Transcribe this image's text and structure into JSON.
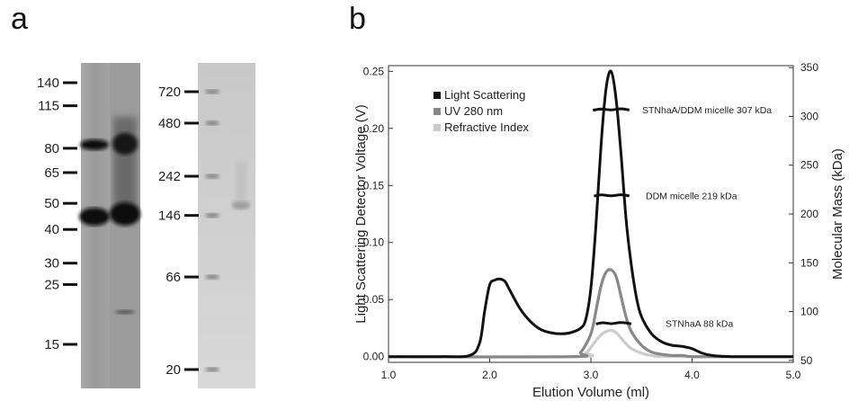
{
  "panels": {
    "a": "a",
    "b": "b"
  },
  "gel_left": {
    "markers": [
      "140",
      "115",
      "80",
      "65",
      "50",
      "40",
      "30",
      "25",
      "15"
    ],
    "marker_kda": [
      140,
      115,
      80,
      65,
      50,
      40,
      30,
      25,
      15
    ]
  },
  "gel_right": {
    "markers": [
      "720",
      "480",
      "242",
      "146",
      "66",
      "20"
    ],
    "marker_kda": [
      720,
      480,
      242,
      146,
      66,
      20
    ]
  },
  "chart_data": {
    "type": "line",
    "xlabel": "Elution Volume (ml)",
    "ylabel": "Light Scattering Detector Voltage (V)",
    "y2label": "Molecular Mass (kDa)",
    "xlim": [
      1.0,
      5.0
    ],
    "ylim": [
      -0.005,
      0.255
    ],
    "y2lim": [
      48,
      352
    ],
    "x_ticks": [
      "1.0",
      "2.0",
      "3.0",
      "4.0",
      "5.0"
    ],
    "y_ticks": [
      "0.00",
      "0.05",
      "0.10",
      "0.15",
      "0.20",
      "0.25"
    ],
    "y2_ticks": [
      "50",
      "100",
      "150",
      "200",
      "250",
      "300",
      "350"
    ],
    "legend_position": "top-left",
    "series": [
      {
        "name": "Light Scattering",
        "color": "#111111",
        "x": [
          1.0,
          1.5,
          1.8,
          1.9,
          1.95,
          2.0,
          2.05,
          2.1,
          2.15,
          2.2,
          2.3,
          2.4,
          2.5,
          2.6,
          2.7,
          2.8,
          2.9,
          2.95,
          3.0,
          3.05,
          3.1,
          3.15,
          3.2,
          3.25,
          3.3,
          3.35,
          3.4,
          3.45,
          3.5,
          3.6,
          3.7,
          3.8,
          3.9,
          4.0,
          4.1,
          4.2,
          4.4,
          5.0
        ],
        "y": [
          0.0,
          0.0,
          0.001,
          0.012,
          0.04,
          0.063,
          0.067,
          0.068,
          0.066,
          0.058,
          0.042,
          0.031,
          0.024,
          0.021,
          0.02,
          0.021,
          0.025,
          0.033,
          0.06,
          0.115,
          0.185,
          0.235,
          0.25,
          0.225,
          0.175,
          0.118,
          0.08,
          0.052,
          0.035,
          0.02,
          0.013,
          0.01,
          0.009,
          0.007,
          0.003,
          0.001,
          0.0,
          0.0
        ]
      },
      {
        "name": "UV 280 nm",
        "color": "#888888",
        "x": [
          1.0,
          2.8,
          2.9,
          3.0,
          3.05,
          3.1,
          3.15,
          3.2,
          3.25,
          3.3,
          3.35,
          3.4,
          3.5,
          3.6,
          3.7,
          3.8,
          3.9,
          4.0,
          4.2,
          5.0
        ],
        "y": [
          0.0,
          0.0,
          0.004,
          0.02,
          0.04,
          0.062,
          0.074,
          0.076,
          0.07,
          0.052,
          0.034,
          0.022,
          0.01,
          0.004,
          0.002,
          0.001,
          0.001,
          0.0,
          0.0,
          0.0
        ]
      },
      {
        "name": "Refractive Index",
        "color": "#cccccc",
        "x": [
          1.0,
          2.85,
          2.95,
          3.0,
          3.05,
          3.1,
          3.15,
          3.2,
          3.25,
          3.3,
          3.35,
          3.4,
          3.5,
          3.6,
          3.8,
          5.0
        ],
        "y": [
          0.0,
          0.0,
          0.003,
          0.008,
          0.014,
          0.019,
          0.022,
          0.023,
          0.021,
          0.016,
          0.011,
          0.007,
          0.003,
          0.001,
          0.0,
          0.0
        ]
      }
    ],
    "mass_series": [
      {
        "label": "STNhaA/DDM micelle 307 kDa",
        "kda": 307,
        "x": [
          3.02,
          3.1,
          3.2,
          3.3,
          3.38
        ]
      },
      {
        "label": "DDM micelle 219 kDa",
        "kda": 219,
        "x": [
          3.03,
          3.1,
          3.2,
          3.3,
          3.38
        ]
      },
      {
        "label": "STNhaA 88 kDa",
        "kda": 88,
        "x": [
          3.05,
          3.12,
          3.2,
          3.3,
          3.4
        ]
      }
    ]
  }
}
